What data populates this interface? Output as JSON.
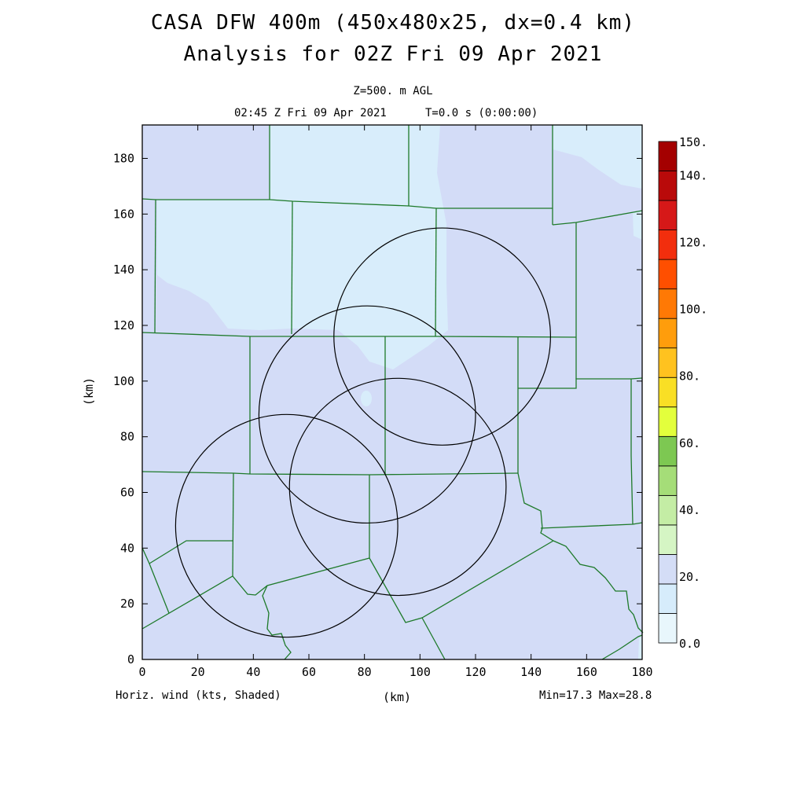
{
  "header": {
    "title_line1": "CASA DFW 400m (450x480x25, dx=0.4 km)",
    "title_line2": "Analysis for 02Z Fri 09 Apr 2021",
    "level": "Z=500. m AGL",
    "valid_time": "02:45 Z Fri 09 Apr 2021",
    "forecast_time": "T=0.0 s (0:00:00)"
  },
  "axes": {
    "x_label": "(km)",
    "y_label": "(km)",
    "x_ticks": [
      "0",
      "20",
      "40",
      "60",
      "80",
      "100",
      "120",
      "140",
      "160",
      "180"
    ],
    "y_ticks": [
      "0",
      "20",
      "40",
      "60",
      "80",
      "100",
      "120",
      "140",
      "160",
      "180"
    ],
    "x_range": [
      0,
      180
    ],
    "y_range": [
      0,
      192
    ]
  },
  "footer": {
    "field_label": "Horiz. wind (kts, Shaded)",
    "range_label": "Min=17.3 Max=28.8"
  },
  "colorbar": {
    "labels": [
      "150.",
      "140.",
      "120.",
      "100.",
      "80.",
      "60.",
      "40.",
      "20.",
      "0.0"
    ],
    "colors_bottom_to_top": [
      "#e8f6fc",
      "#d6ecfb",
      "#d4ddf6",
      "#d5f5c4",
      "#c4eda5",
      "#a5dd78",
      "#7dc852",
      "#e3ff3c",
      "#f9df25",
      "#ffc21f",
      "#ff9d0c",
      "#ff7905",
      "#ff4f00",
      "#f22e0d",
      "#d61818",
      "#b90a0a",
      "#a40000"
    ]
  },
  "map": {
    "background_shading": "#d3dcf7",
    "light_region_color": "#d8edfb",
    "boundary_color": "#1e7a2a",
    "ring_color": "#000000",
    "radar_rings_center_km": [
      {
        "x": 108,
        "y": 116,
        "r": 39
      },
      {
        "x": 81,
        "y": 88,
        "r": 39
      },
      {
        "x": 52,
        "y": 48,
        "r": 40
      },
      {
        "x": 92,
        "y": 62,
        "r": 39
      }
    ]
  }
}
